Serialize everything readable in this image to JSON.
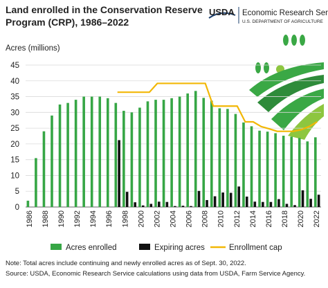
{
  "chart_data": {
    "type": "bar",
    "title": [
      "Land enrolled in the Conservation Reserve",
      "Program (CRP), 1986–2022"
    ],
    "logo": {
      "agency": "USDA",
      "name": "Economic Research Service",
      "department": "U.S. DEPARTMENT OF AGRICULTURE"
    },
    "y_label": "Acres (millions)",
    "categories": [
      "1986",
      null,
      "1988",
      null,
      "1990",
      null,
      "1992",
      null,
      "1994",
      null,
      "1996",
      null,
      "1998",
      null,
      "2000",
      null,
      "2002",
      null,
      "2004",
      null,
      "2006",
      null,
      "2008",
      null,
      "2010",
      null,
      "2012",
      null,
      "2014",
      null,
      "2016",
      null,
      "2018",
      null,
      "2020",
      null,
      "2022"
    ],
    "series": [
      {
        "name": "Acres enrolled",
        "color": "#36a645",
        "type": "bar",
        "values": [
          2,
          15.5,
          24,
          29,
          32.5,
          33,
          34,
          35,
          35,
          35,
          34.5,
          33,
          30.5,
          30,
          31.5,
          33.5,
          34,
          34,
          34.5,
          35,
          36,
          36.8,
          34.6,
          33.7,
          31.3,
          31.1,
          29.5,
          26.8,
          25.6,
          24.2,
          23.9,
          23.4,
          22.6,
          22.3,
          21.9,
          20.8,
          22.1
        ]
      },
      {
        "name": "Expiring acres",
        "color": "#111111",
        "type": "bar",
        "values": [
          null,
          null,
          null,
          null,
          null,
          null,
          null,
          null,
          null,
          null,
          null,
          21.2,
          4.8,
          1.5,
          0.5,
          1,
          1.7,
          1.6,
          0.3,
          0.4,
          0.3,
          5.1,
          2.2,
          3.4,
          4.6,
          4.5,
          6.5,
          3.3,
          1.7,
          1.6,
          1.6,
          2.5,
          1,
          0.6,
          5.3,
          2.6,
          3.9
        ]
      },
      {
        "name": "Enrollment cap",
        "color": "#f2b705",
        "type": "line",
        "values": [
          null,
          null,
          null,
          null,
          null,
          null,
          null,
          null,
          null,
          null,
          null,
          36.4,
          36.4,
          36.4,
          36.4,
          36.4,
          39.2,
          39.2,
          39.2,
          39.2,
          39.2,
          39.2,
          39.2,
          32,
          32,
          32,
          32,
          27,
          27,
          25.5,
          24.8,
          24,
          24,
          24,
          24.5,
          25.5,
          27
        ]
      }
    ],
    "ylim": [
      0,
      45
    ],
    "yticks": [
      0,
      5,
      10,
      15,
      20,
      25,
      30,
      35,
      40,
      45
    ],
    "grid": true,
    "notes": [
      "Note: Total acres include continuing and newly enrolled acres as of Sept. 30, 2022.",
      "Source: USDA, Economic Research Service calculations using data from USDA, Farm Service Agency."
    ]
  }
}
